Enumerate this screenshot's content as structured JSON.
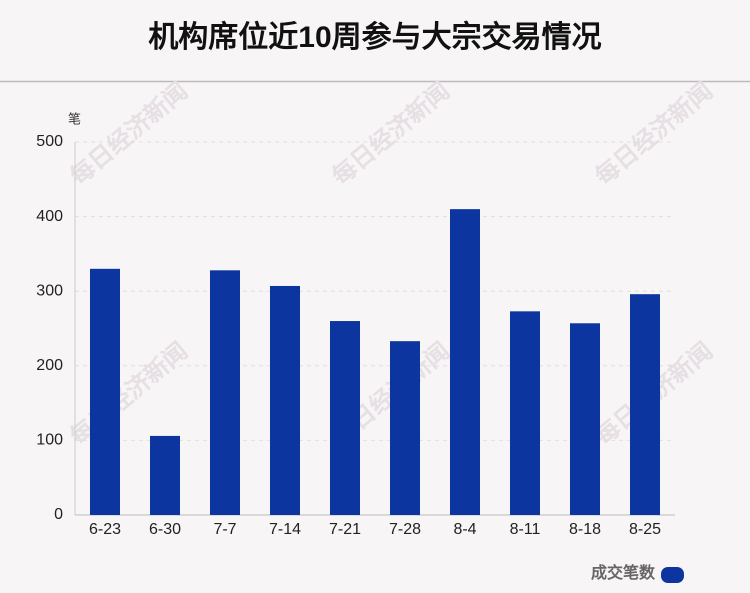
{
  "chart_data": {
    "type": "bar",
    "title": "机构席位近10周参与大宗交易情况",
    "y_label": "笔",
    "categories": [
      "6-23",
      "6-30",
      "7-7",
      "7-14",
      "7-21",
      "7-28",
      "8-4",
      "8-11",
      "8-18",
      "8-25"
    ],
    "series": [
      {
        "name": "成交笔数",
        "color": "#0c35a0",
        "values": [
          330,
          106,
          328,
          307,
          260,
          233,
          410,
          273,
          257,
          296
        ]
      }
    ],
    "ylim": [
      0,
      500
    ],
    "yticks": [
      0,
      100,
      200,
      300,
      400,
      500
    ],
    "grid": true,
    "legend": "bottom-right",
    "watermark": "每日经济新闻"
  }
}
